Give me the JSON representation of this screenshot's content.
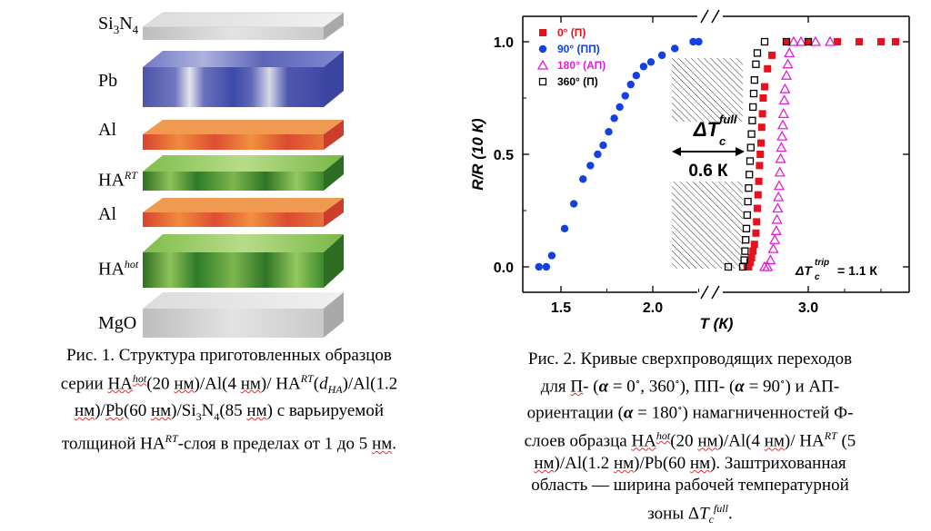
{
  "layers": [
    {
      "id": "si3n4",
      "label": "Si₃N₄"
    },
    {
      "id": "pb",
      "label": "Pb"
    },
    {
      "id": "al-top",
      "label": "Al"
    },
    {
      "id": "na-rt",
      "label": "HA",
      "sup": "RT"
    },
    {
      "id": "al-bottom",
      "label": "Al"
    },
    {
      "id": "na-hot",
      "label": "HA",
      "sup": "hot"
    },
    {
      "id": "mgo",
      "label": "MgO"
    }
  ],
  "colors": {
    "si3n4": "#d2d2d2",
    "pb": "#4a57a8",
    "al": "#e0553a",
    "na": "#3f8f2f",
    "mgo": "#c9c9c9",
    "red": "#e8101a",
    "blue": "#1540e0",
    "magenta": "#e020d8",
    "black": "#000000"
  },
  "caption1": {
    "lines": [
      "Рис. 1. Структура приготовленных образцов",
      "серии HA^hot(20 нм)/Al(4 нм)/ HA^RT(d_HA)/Al(1.2",
      "нм)/Pb(60 нм)/Si₃N₄(85 нм) с варьируемой",
      "толщиной HA^RT-слоя в пределах от 1 до 5 нм."
    ],
    "l1": "Рис. 1. Структура приготовленных образцов",
    "l2a": "серии ",
    "l2b": "НА",
    "l2c": "hot",
    "l2d": "(20 ",
    "l2e": "нм",
    "l2f": ")/Al(4 ",
    "l2g": "нм",
    "l2h": ")/ НА",
    "l2i": "RT",
    "l2j": "(",
    "l2k": "d",
    "l2l": "HA",
    "l2m": ")/Al(1.2",
    "l3a": "нм",
    "l3b": ")/",
    "l3c": "Pb",
    "l3d": "(60 ",
    "l3e": "нм",
    "l3f": ")/Si",
    "l3g": "3",
    "l3h": "N",
    "l3i": "4",
    "l3j": "(85 ",
    "l3k": "нм",
    "l3l": ") с варьируемой",
    "l4a": "толщиной НА",
    "l4b": "RT",
    "l4c": "-слоя в пределах от 1 до 5 ",
    "l4d": "нм",
    "l4e": "."
  },
  "caption2": {
    "l1": "Рис. 2. Кривые сверхпроводящих переходов",
    "l2a": "для ",
    "l2b": "П",
    "l2c": "- (",
    "l2d": "α",
    "l2e": " = 0",
    "l2f": "∘",
    "l2g": ", 360",
    "l2h": "∘",
    "l2i": "), ПП- (",
    "l2j": "α",
    "l2k": " = 90",
    "l2l": "∘",
    "l2m": ") и АП-",
    "l3a": "ориентации (",
    "l3b": "α",
    "l3c": " = 180",
    "l3d": "∘",
    "l3e": ") намагниченностей Ф-",
    "l4a": "слоев образца ",
    "l4b": "НА",
    "l4c": "hot",
    "l4d": "(20 ",
    "l4e": "нм",
    "l4f": ")/Al(4 ",
    "l4g": "нм",
    "l4h": ")/ НА",
    "l4i": "RT",
    "l4j": " (5",
    "l5a": "нм",
    "l5b": ")/Al(1.2 ",
    "l5c": "нм",
    "l5d": ")/Pb(60 ",
    "l5e": "нм",
    "l5f": "). Заштрихованная",
    "l6": "область — ширина рабочей температурной",
    "l7a": "зоны Δ",
    "l7b": "T",
    "l7c": "c",
    "l7d": "full",
    "l7e": "."
  },
  "chart_data": {
    "type": "scatter",
    "xlabel": "T (К)",
    "ylabel": "R/R (10 К)",
    "x_ticks": [
      "1.5",
      "2.0",
      "3.0"
    ],
    "x_tick_values": [
      1.5,
      2.0,
      3.0
    ],
    "y_ticks": [
      "0.0",
      "0.5",
      "1.0"
    ],
    "y_tick_values": [
      0.0,
      0.5,
      1.0
    ],
    "axis_break": "between 2.3 and 2.5 K",
    "annotation_full_symbol": "ΔT",
    "annotation_full_sub": "c",
    "annotation_full_sup": "full",
    "annotation_full_value": "0.6 К",
    "annotation_trip_symbol": "ΔT",
    "annotation_trip_sub": "c",
    "annotation_trip_sup": "trip",
    "annotation_trip_value": "= 1.1 К",
    "legend_position": "top-left",
    "series": [
      {
        "name": "0° (П)",
        "marker": "square-filled",
        "color": "red",
        "x": [
          2.58,
          2.59,
          2.6,
          2.61,
          2.62,
          2.63,
          2.64,
          2.645,
          2.65,
          2.655,
          2.66,
          2.665,
          2.67,
          2.675,
          2.68,
          2.685,
          2.69,
          2.7,
          2.72,
          2.75,
          2.85,
          3.0,
          3.2,
          3.35,
          3.5,
          3.6
        ],
        "y": [
          0.0,
          0.0,
          0.02,
          0.04,
          0.07,
          0.1,
          0.15,
          0.2,
          0.26,
          0.32,
          0.38,
          0.45,
          0.5,
          0.55,
          0.62,
          0.68,
          0.75,
          0.8,
          0.88,
          0.94,
          1.0,
          1.0,
          1.0,
          1.0,
          1.0,
          1.0
        ]
      },
      {
        "name": "90° (ПП)",
        "marker": "circle-filled",
        "color": "blue",
        "x": [
          1.38,
          1.42,
          1.45,
          1.52,
          1.57,
          1.62,
          1.66,
          1.7,
          1.73,
          1.76,
          1.79,
          1.82,
          1.85,
          1.88,
          1.91,
          1.95,
          1.99,
          2.05,
          2.12,
          2.22,
          2.25
        ],
        "y": [
          0.0,
          0.0,
          0.05,
          0.17,
          0.28,
          0.39,
          0.45,
          0.5,
          0.54,
          0.6,
          0.66,
          0.71,
          0.76,
          0.81,
          0.85,
          0.89,
          0.91,
          0.94,
          0.97,
          1.0,
          1.0
        ]
      },
      {
        "name": "180° (АП)",
        "marker": "triangle-open",
        "color": "magenta",
        "x": [
          2.7,
          2.72,
          2.74,
          2.76,
          2.77,
          2.78,
          2.785,
          2.79,
          2.795,
          2.8,
          2.805,
          2.81,
          2.815,
          2.82,
          2.825,
          2.83,
          2.835,
          2.84,
          2.85,
          2.86,
          2.87,
          2.9,
          2.95,
          3.05,
          3.15
        ],
        "y": [
          0.0,
          0.0,
          0.03,
          0.08,
          0.12,
          0.16,
          0.21,
          0.26,
          0.31,
          0.36,
          0.42,
          0.48,
          0.53,
          0.58,
          0.63,
          0.68,
          0.74,
          0.79,
          0.85,
          0.9,
          0.95,
          1.0,
          1.0,
          1.0,
          1.0
        ]
      },
      {
        "name": "360° (П)",
        "marker": "square-open",
        "color": "black",
        "x": [
          2.45,
          2.55,
          2.56,
          2.565,
          2.57,
          2.575,
          2.58,
          2.585,
          2.59,
          2.595,
          2.6,
          2.605,
          2.61,
          2.615,
          2.62,
          2.625,
          2.63,
          2.64,
          2.65,
          2.7,
          2.85,
          3.0
        ],
        "y": [
          0.0,
          0.0,
          0.03,
          0.07,
          0.12,
          0.17,
          0.23,
          0.29,
          0.35,
          0.41,
          0.47,
          0.53,
          0.59,
          0.65,
          0.71,
          0.77,
          0.83,
          0.9,
          0.95,
          1.0,
          1.0,
          1.0
        ]
      }
    ]
  }
}
